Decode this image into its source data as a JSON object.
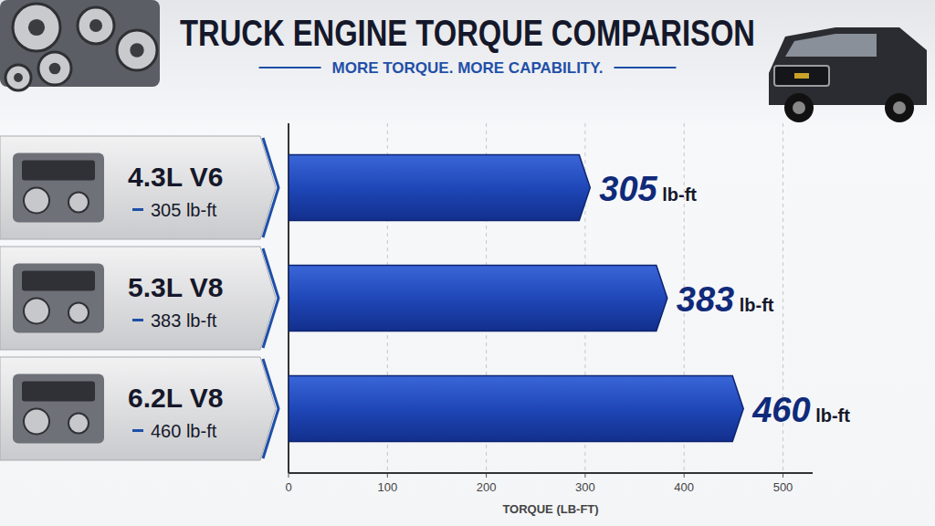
{
  "chart_data": {
    "type": "bar",
    "orientation": "horizontal",
    "title": "TRUCK ENGINE TORQUE COMPARISON",
    "subtitle": "MORE TORQUE. MORE CAPABILITY.",
    "x_label": "TORQUE (LB-FT)",
    "categories": [
      "4.3L V6",
      "5.3L V8",
      "6.2L V8"
    ],
    "values": [
      305,
      383,
      460
    ],
    "value_labels": [
      "305 lb-ft",
      "383 lb-ft",
      "460 lb-ft"
    ],
    "color": "#1f47b8",
    "xlim": [
      0,
      530
    ],
    "xticks": [
      0,
      100,
      200,
      300,
      400,
      500
    ],
    "grid": true,
    "data_labels": true
  }
}
